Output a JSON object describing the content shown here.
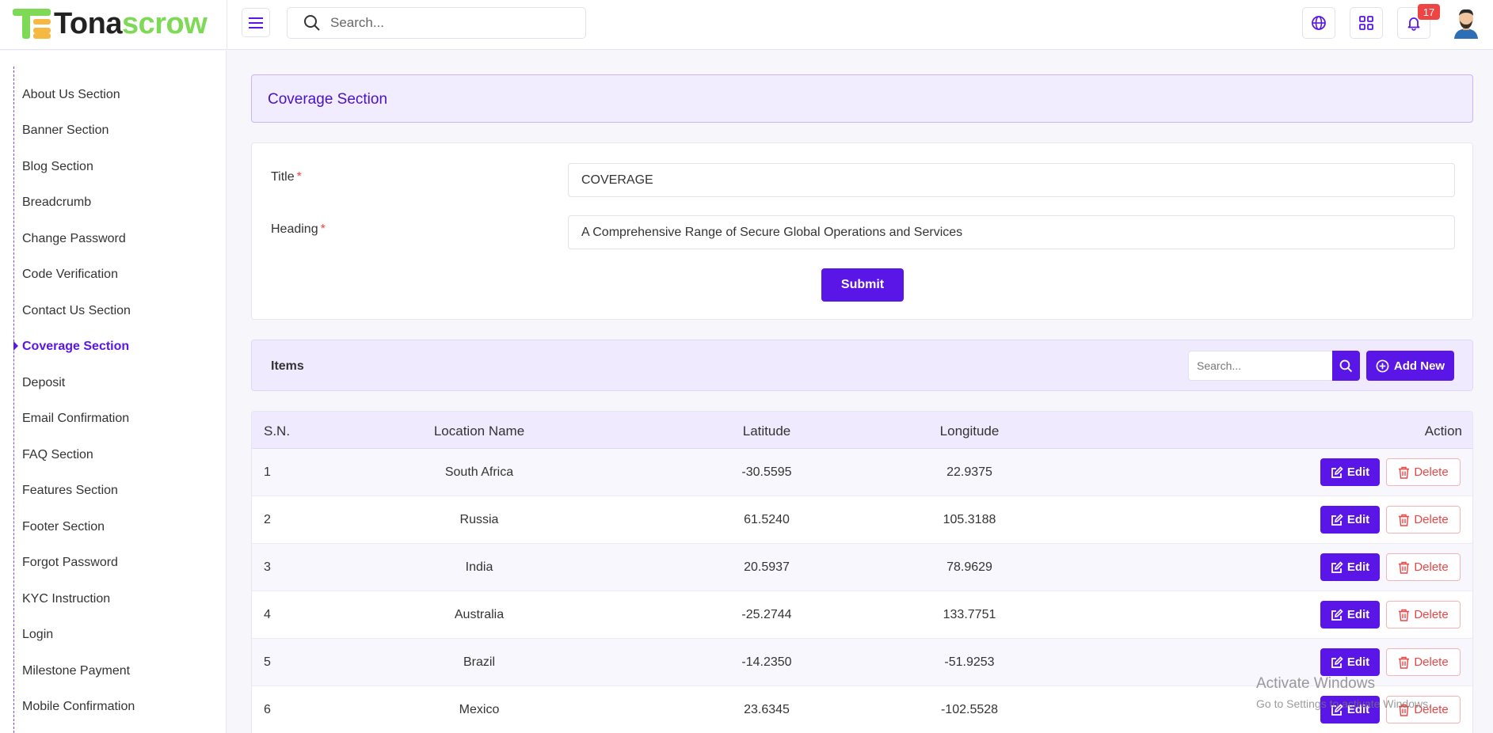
{
  "app": {
    "logo_part1": "Tona",
    "logo_part2": "scrow"
  },
  "topbar": {
    "search_placeholder": "Search...",
    "notification_count": "17"
  },
  "sidebar": {
    "items": [
      {
        "label": "About Us Section"
      },
      {
        "label": "Banner Section"
      },
      {
        "label": "Blog Section"
      },
      {
        "label": "Breadcrumb"
      },
      {
        "label": "Change Password"
      },
      {
        "label": "Code Verification"
      },
      {
        "label": "Contact Us Section"
      },
      {
        "label": "Coverage Section",
        "active": true
      },
      {
        "label": "Deposit"
      },
      {
        "label": "Email Confirmation"
      },
      {
        "label": "FAQ Section"
      },
      {
        "label": "Features Section"
      },
      {
        "label": "Footer Section"
      },
      {
        "label": "Forgot Password"
      },
      {
        "label": "KYC Instruction"
      },
      {
        "label": "Login"
      },
      {
        "label": "Milestone Payment"
      },
      {
        "label": "Mobile Confirmation"
      }
    ]
  },
  "page": {
    "title": "Coverage Section"
  },
  "form": {
    "title_label": "Title",
    "title_value": "COVERAGE",
    "heading_label": "Heading",
    "heading_value": "A Comprehensive Range of Secure Global Operations and Services",
    "required_mark": "*",
    "submit_label": "Submit"
  },
  "items": {
    "title": "Items",
    "search_placeholder": "Search...",
    "add_new_label": "Add New",
    "columns": [
      "S.N.",
      "Location Name",
      "Latitude",
      "Longitude",
      "Action"
    ],
    "edit_label": "Edit",
    "delete_label": "Delete",
    "rows": [
      {
        "sn": "1",
        "location": "South Africa",
        "latitude": "-30.5595",
        "longitude": "22.9375"
      },
      {
        "sn": "2",
        "location": "Russia",
        "latitude": "61.5240",
        "longitude": "105.3188"
      },
      {
        "sn": "3",
        "location": "India",
        "latitude": "20.5937",
        "longitude": "78.9629"
      },
      {
        "sn": "4",
        "location": "Australia",
        "latitude": "-25.2744",
        "longitude": "133.7751"
      },
      {
        "sn": "5",
        "location": "Brazil",
        "latitude": "-14.2350",
        "longitude": "-51.9253"
      },
      {
        "sn": "6",
        "location": "Mexico",
        "latitude": "23.6345",
        "longitude": "-102.5528"
      }
    ]
  },
  "watermark": {
    "line1": "Activate Windows",
    "line2": "Go to Settings to activate Windows."
  },
  "colors": {
    "accent": "#5a16e6",
    "danger": "#ef4444",
    "logo_green": "#7ed957",
    "logo_yellow": "#f5b942"
  }
}
